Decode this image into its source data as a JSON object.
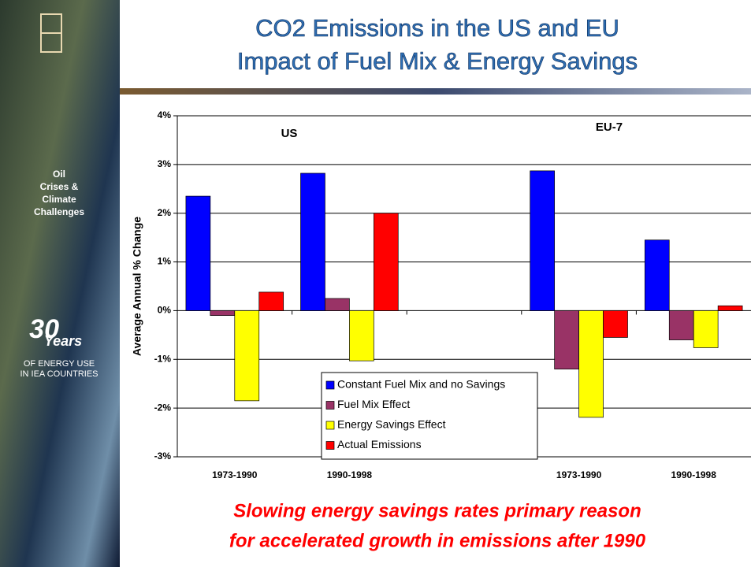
{
  "header": {
    "title": [
      "CO2 Emissions in the US and EU",
      "Impact of Fuel Mix & Energy Savings"
    ]
  },
  "sidebar": {
    "theme": [
      "Oil",
      "Crises &",
      "Climate",
      "Challenges"
    ],
    "number": "30",
    "word": "Years",
    "caption": [
      "OF ENERGY USE",
      "IN IEA COUNTRIES"
    ]
  },
  "footer": {
    "lines": [
      "Slowing energy savings rates primary reason",
      "for accelerated growth in emissions after 1990"
    ]
  },
  "chart_data": {
    "type": "bar",
    "ylabel": "Average Annual % Change",
    "categories": [
      "1973-1990",
      "1990-1998",
      null,
      "1973-1990",
      "1990-1998"
    ],
    "annotations": [
      "US",
      "EU-7"
    ],
    "series": [
      {
        "name": "Constant Fuel Mix and no Savings",
        "color": "#0000ff",
        "values": [
          2.35,
          2.82,
          null,
          2.87,
          1.45
        ]
      },
      {
        "name": "Fuel Mix Effect",
        "color": "#993366",
        "values": [
          -0.1,
          0.25,
          null,
          -1.2,
          -0.6
        ]
      },
      {
        "name": "Energy Savings Effect",
        "color": "#ffff00",
        "values": [
          -1.85,
          -1.03,
          null,
          -2.19,
          -0.76
        ]
      },
      {
        "name": "Actual Emissions",
        "color": "#ff0000",
        "values": [
          0.38,
          2.0,
          null,
          -0.55,
          0.1
        ]
      }
    ],
    "ylim": [
      -3,
      4
    ],
    "yticks": [
      {
        "value": -3,
        "label": "-3%"
      },
      {
        "value": -2,
        "label": "-2%"
      },
      {
        "value": -1,
        "label": "-1%"
      },
      {
        "value": 0,
        "label": "0%"
      },
      {
        "value": 1,
        "label": "1%"
      },
      {
        "value": 2,
        "label": "2%"
      },
      {
        "value": 3,
        "label": "3%"
      },
      {
        "value": 4,
        "label": "4%"
      }
    ],
    "grid": true,
    "legend": "bottom-center"
  }
}
